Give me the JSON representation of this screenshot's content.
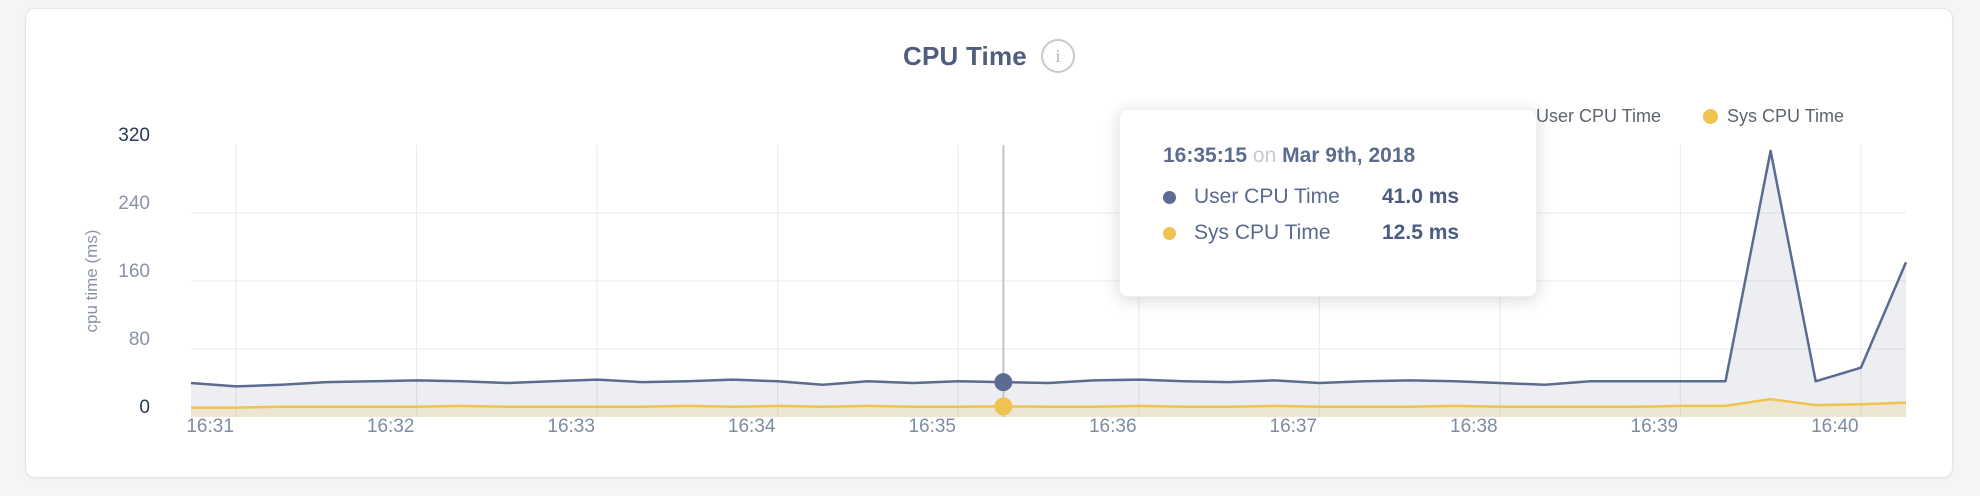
{
  "header": {
    "title": "CPU Time"
  },
  "icons": {
    "info": "i"
  },
  "legend": {
    "items": [
      {
        "label": "User CPU Time",
        "color": "#5b6b92"
      },
      {
        "label": "Sys CPU Time",
        "color": "#f0c24f"
      }
    ]
  },
  "tooltip": {
    "time": "16:35:15",
    "connector": "on",
    "date": "Mar 9th, 2018",
    "rows": [
      {
        "label": "User CPU Time",
        "value": "41.0 ms",
        "color": "#5b6b92"
      },
      {
        "label": "Sys CPU Time",
        "value": "12.5 ms",
        "color": "#f0c24f"
      }
    ]
  },
  "chart_data": {
    "type": "area",
    "title": "CPU Time",
    "xlabel": "",
    "ylabel": "cpu time (ms)",
    "ylim": [
      0,
      320
    ],
    "y_ticks": [
      0,
      80,
      160,
      240,
      320
    ],
    "y_gridlines": [
      80,
      160,
      240
    ],
    "x_tick_labels": [
      "16:31",
      "16:32",
      "16:33",
      "16:34",
      "16:35",
      "16:36",
      "16:37",
      "16:38",
      "16:39",
      "16:40"
    ],
    "legend_position": "top-right",
    "grid": true,
    "x": [
      "16:30:45",
      "16:31:00",
      "16:31:15",
      "16:31:30",
      "16:31:45",
      "16:32:00",
      "16:32:15",
      "16:32:30",
      "16:32:45",
      "16:33:00",
      "16:33:15",
      "16:33:30",
      "16:33:45",
      "16:34:00",
      "16:34:15",
      "16:34:30",
      "16:34:45",
      "16:35:00",
      "16:35:15",
      "16:35:30",
      "16:35:45",
      "16:36:00",
      "16:36:15",
      "16:36:30",
      "16:36:45",
      "16:37:00",
      "16:37:15",
      "16:37:30",
      "16:37:45",
      "16:38:00",
      "16:38:15",
      "16:38:30",
      "16:38:45",
      "16:39:00",
      "16:39:15",
      "16:39:30",
      "16:39:45",
      "16:40:00",
      "16:40:15"
    ],
    "series": [
      {
        "name": "User CPU Time",
        "color": "#5b6b92",
        "fill": "rgba(99,113,143,0.12)",
        "unit": "ms",
        "values": [
          40,
          36,
          38,
          41,
          42,
          43,
          42,
          40,
          42,
          44,
          41,
          42,
          44,
          42,
          38,
          42,
          40,
          42,
          41,
          40,
          43,
          44,
          42,
          41,
          43,
          40,
          42,
          43,
          42,
          40,
          38,
          42,
          42,
          42,
          42,
          313,
          42,
          58,
          182
        ]
      },
      {
        "name": "Sys CPU Time",
        "color": "#f0c24f",
        "fill": "rgba(240,194,79,0.18)",
        "unit": "ms",
        "values": [
          11,
          11,
          12,
          12,
          12,
          12,
          13,
          12,
          12,
          12,
          12,
          13,
          12,
          13,
          12,
          13,
          12,
          12,
          12.5,
          12,
          12,
          13,
          12,
          12,
          13,
          12,
          12,
          12,
          13,
          12,
          12,
          12,
          12,
          13,
          13,
          21,
          14,
          15,
          17
        ]
      }
    ],
    "hover": {
      "time": "16:35:15",
      "date": "Mar 9th, 2018",
      "values": [
        41.0,
        12.5
      ]
    }
  }
}
